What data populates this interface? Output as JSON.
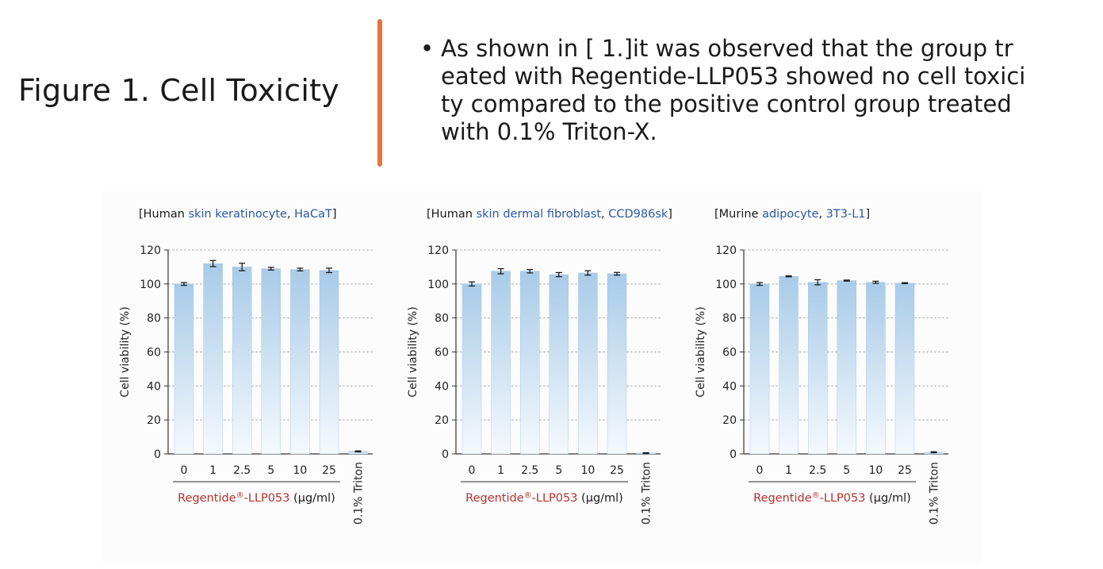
{
  "slide": {
    "title": "Figure 1. Cell Toxicity",
    "bullet_symbol": "•",
    "bullet_lines": [
      "As shown in [ 1.]it was observed that the group tr",
      "eated with Regentide-LLP053 showed no cell toxici",
      "ty compared to the positive control group treated",
      "with 0.1% Triton-X."
    ],
    "divider_color": "#e8743a"
  },
  "colors": {
    "bar_top": "#a8cbe8",
    "bar_bottom": "#f4f9fd",
    "label_red": "#b5302a",
    "label_blue": "#2a58a0",
    "grid": "#b0b0b0"
  },
  "chart_data": [
    {
      "type": "bar",
      "title_parts": [
        {
          "text": "[Human ",
          "color": "dark"
        },
        {
          "text": "skin keratinocyte",
          "color": "blue"
        },
        {
          "text": ", ",
          "color": "dark"
        },
        {
          "text": "HaCaT",
          "color": "blue"
        },
        {
          "text": "]",
          "color": "dark"
        }
      ],
      "categories": [
        "0",
        "1",
        "2.5",
        "5",
        "10",
        "25",
        "0.1% Triton"
      ],
      "values": [
        100,
        112,
        110,
        109,
        108.5,
        108,
        1.5
      ],
      "errors": [
        0.8,
        1.8,
        2.2,
        0.8,
        0.8,
        1.3,
        0.3
      ],
      "ylabel": "Cell viability (%)",
      "ylim": [
        0,
        120
      ],
      "yticks": [
        0,
        20,
        40,
        60,
        80,
        100,
        120
      ],
      "grid": true,
      "xlabel_parts": [
        {
          "text": "Regentide",
          "sup": "",
          "color": "red"
        },
        {
          "text": "",
          "sup": "®",
          "color": "red"
        },
        {
          "text": "-LLP053",
          "sup": "",
          "color": "red"
        },
        {
          "text": " (μg/ml)",
          "sup": "",
          "color": "dark"
        }
      ]
    },
    {
      "type": "bar",
      "title_parts": [
        {
          "text": "[Human ",
          "color": "dark"
        },
        {
          "text": "skin dermal fibroblast",
          "color": "blue"
        },
        {
          "text": ", ",
          "color": "dark"
        },
        {
          "text": "CCD986sk",
          "color": "blue"
        },
        {
          "text": "]",
          "color": "dark"
        }
      ],
      "categories": [
        "0",
        "1",
        "2.5",
        "5",
        "10",
        "25",
        "0.1% Triton"
      ],
      "values": [
        100,
        107.5,
        107.5,
        105.5,
        106.5,
        106,
        0.5
      ],
      "errors": [
        1.2,
        1.5,
        1.0,
        1.2,
        1.3,
        0.8,
        0.2
      ],
      "ylabel": "Cell viability (%)",
      "ylim": [
        0,
        120
      ],
      "yticks": [
        0,
        20,
        40,
        60,
        80,
        100,
        120
      ],
      "grid": true,
      "xlabel_parts": [
        {
          "text": "Regentide",
          "sup": "",
          "color": "red"
        },
        {
          "text": "",
          "sup": "®",
          "color": "red"
        },
        {
          "text": "-LLP053",
          "sup": "",
          "color": "red"
        },
        {
          "text": " (μg/ml)",
          "sup": "",
          "color": "dark"
        }
      ]
    },
    {
      "type": "bar",
      "title_parts": [
        {
          "text": "[Murine ",
          "color": "dark"
        },
        {
          "text": "adipocyte",
          "color": "blue"
        },
        {
          "text": ", ",
          "color": "dark"
        },
        {
          "text": "3T3-L1",
          "color": "blue"
        },
        {
          "text": "]",
          "color": "dark"
        }
      ],
      "categories": [
        "0",
        "1",
        "2.5",
        "5",
        "10",
        "25",
        "0.1% Triton"
      ],
      "values": [
        100,
        104.5,
        101,
        102,
        101,
        100.5,
        1
      ],
      "errors": [
        0.8,
        0.3,
        1.5,
        0.3,
        0.6,
        0.3,
        0.3
      ],
      "ylabel": "Cell viability (%)",
      "ylim": [
        0,
        120
      ],
      "yticks": [
        0,
        20,
        40,
        60,
        80,
        100,
        120
      ],
      "grid": true,
      "xlabel_parts": [
        {
          "text": "Regentide",
          "sup": "",
          "color": "red"
        },
        {
          "text": "",
          "sup": "®",
          "color": "red"
        },
        {
          "text": "-LLP053",
          "sup": "",
          "color": "red"
        },
        {
          "text": " (μg/ml)",
          "sup": "",
          "color": "dark"
        }
      ]
    }
  ]
}
